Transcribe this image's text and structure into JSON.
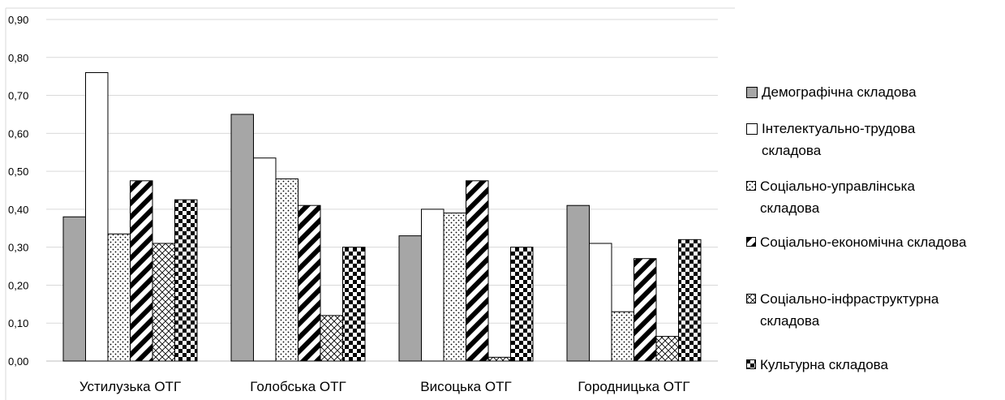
{
  "chart_data": {
    "type": "bar",
    "categories": [
      "Устилузька ОТГ",
      "Голобська ОТГ",
      "Висоцька ОТГ",
      "Городницька ОТГ"
    ],
    "y_tick_labels": [
      "0,00",
      "0,10",
      "0,20",
      "0,30",
      "0,40",
      "0,50",
      "0,60",
      "0,70",
      "0,80",
      "0,90"
    ],
    "ylim": [
      0,
      0.9
    ],
    "grid": true,
    "legend_position": "right",
    "series": [
      {
        "name": "Демографічна складова",
        "values": [
          0.38,
          0.65,
          0.33,
          0.41
        ],
        "pattern": "solid-gray"
      },
      {
        "name": "Інтелектуально-трудова складова",
        "values": [
          0.76,
          0.535,
          0.4,
          0.31
        ],
        "pattern": "white"
      },
      {
        "name": "Соціально-управлінська складова",
        "values": [
          0.335,
          0.48,
          0.39,
          0.13
        ],
        "pattern": "dots"
      },
      {
        "name": "Соціально-економічна складова",
        "values": [
          0.475,
          0.41,
          0.475,
          0.27
        ],
        "pattern": "diagonal-stripes"
      },
      {
        "name": "Соціально-інфраструктурна складова",
        "values": [
          0.31,
          0.12,
          0.01,
          0.065
        ],
        "pattern": "crosshatch"
      },
      {
        "name": "Культурна складова",
        "values": [
          0.425,
          0.3,
          0.3,
          0.32
        ],
        "pattern": "checker"
      }
    ],
    "colors": {
      "gray": "#a6a6a6",
      "stroke": "#000000",
      "grid": "#d9d9d9"
    }
  }
}
